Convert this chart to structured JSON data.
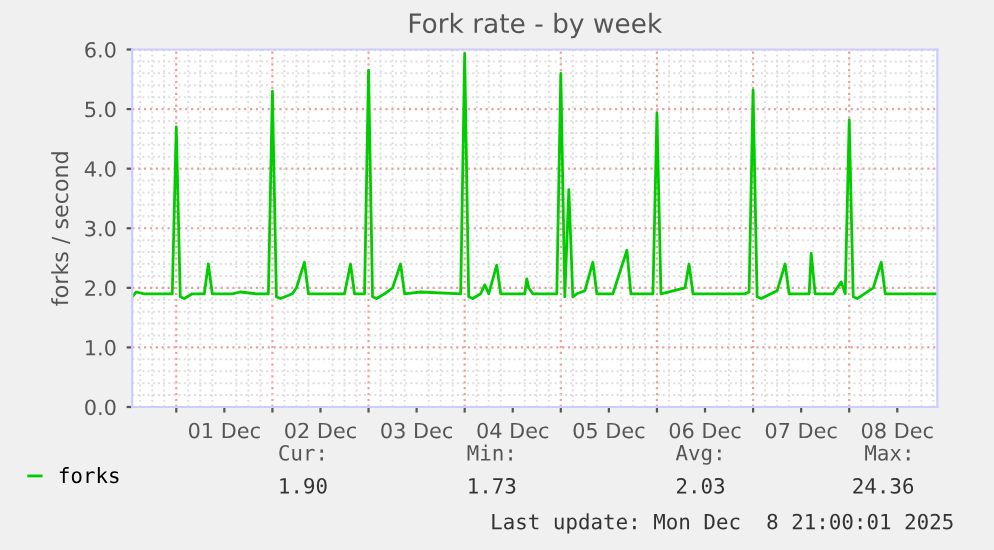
{
  "chart_data": {
    "type": "line",
    "title": "Fork rate - by week",
    "ylabel": "forks / second",
    "xlim": [
      "2025-11-30T13:00",
      "2025-12-08T22:00"
    ],
    "ylim": [
      0,
      6
    ],
    "yticks": [
      {
        "value": 0,
        "label": "0.0"
      },
      {
        "value": 1,
        "label": "1.0"
      },
      {
        "value": 2,
        "label": "2.0"
      },
      {
        "value": 3,
        "label": "3.0"
      },
      {
        "value": 4,
        "label": "4.0"
      },
      {
        "value": 5,
        "label": "5.0"
      },
      {
        "value": 6,
        "label": "6.0"
      }
    ],
    "xticks": [
      {
        "value": "2025-12-01",
        "label": null
      },
      {
        "value": "2025-12-01T12:00",
        "label": "01 Dec"
      },
      {
        "value": "2025-12-02",
        "label": null
      },
      {
        "value": "2025-12-02T12:00",
        "label": "02 Dec"
      },
      {
        "value": "2025-12-03",
        "label": null
      },
      {
        "value": "2025-12-03T12:00",
        "label": "03 Dec"
      },
      {
        "value": "2025-12-04",
        "label": null
      },
      {
        "value": "2025-12-04T12:00",
        "label": "04 Dec"
      },
      {
        "value": "2025-12-05",
        "label": null
      },
      {
        "value": "2025-12-05T12:00",
        "label": "05 Dec"
      },
      {
        "value": "2025-12-06",
        "label": null
      },
      {
        "value": "2025-12-06T12:00",
        "label": "06 Dec"
      },
      {
        "value": "2025-12-07",
        "label": null
      },
      {
        "value": "2025-12-07T12:00",
        "label": "07 Dec"
      },
      {
        "value": "2025-12-08",
        "label": null
      },
      {
        "value": "2025-12-08T12:00",
        "label": "08 Dec"
      }
    ],
    "grid": true,
    "legend": "bottom left",
    "marker": "none",
    "line_style": "solid",
    "annotations": [
      "Cur:",
      "Min:",
      "Avg:",
      "Max:",
      "1.90",
      "1.73",
      "2.03",
      "24.36",
      "Last update: Mon Dec  8 21:00:01 2025"
    ],
    "series": [
      {
        "name": "forks",
        "color": "#00cc00",
        "x": [
          "2025-11-30T13:00",
          "2025-11-30T14:00",
          "2025-11-30T16:00",
          "2025-11-30T20:00",
          "2025-11-30T23:00",
          "2025-12-01T00:00",
          "2025-12-01T01:00",
          "2025-12-01T02:00",
          "2025-12-01T04:00",
          "2025-12-01T07:00",
          "2025-12-01T08:00",
          "2025-12-01T09:00",
          "2025-12-01T14:00",
          "2025-12-01T16:00",
          "2025-12-01T20:00",
          "2025-12-01T23:00",
          "2025-12-02T00:00",
          "2025-12-02T01:00",
          "2025-12-02T02:00",
          "2025-12-02T05:00",
          "2025-12-02T06:00",
          "2025-12-02T08:00",
          "2025-12-02T09:00",
          "2025-12-02T18:00",
          "2025-12-02T19:30",
          "2025-12-02T20:30",
          "2025-12-02T23:00",
          "2025-12-03T00:00",
          "2025-12-03T01:00",
          "2025-12-03T02:00",
          "2025-12-03T04:00",
          "2025-12-03T06:00",
          "2025-12-03T08:00",
          "2025-12-03T09:00",
          "2025-12-03T13:00",
          "2025-12-03T23:00",
          "2025-12-04T00:00",
          "2025-12-04T01:00",
          "2025-12-04T02:00",
          "2025-12-04T04:00",
          "2025-12-04T05:00",
          "2025-12-04T06:00",
          "2025-12-04T08:00",
          "2025-12-04T09:00",
          "2025-12-04T15:00",
          "2025-12-04T15:30",
          "2025-12-04T16:00",
          "2025-12-04T17:00",
          "2025-12-04T23:00",
          "2025-12-05T00:00",
          "2025-12-05T01:00",
          "2025-12-05T02:00",
          "2025-12-05T03:00",
          "2025-12-05T04:00",
          "2025-12-05T06:00",
          "2025-12-05T08:00",
          "2025-12-05T09:00",
          "2025-12-05T13:00",
          "2025-12-05T16:30",
          "2025-12-05T17:30",
          "2025-12-05T23:00",
          "2025-12-06T00:00",
          "2025-12-06T01:00",
          "2025-12-06T07:00",
          "2025-12-06T08:00",
          "2025-12-06T09:00",
          "2025-12-06T22:00",
          "2025-12-06T23:00",
          "2025-12-07T00:00",
          "2025-12-07T01:00",
          "2025-12-07T02:00",
          "2025-12-07T06:00",
          "2025-12-07T08:00",
          "2025-12-07T09:00",
          "2025-12-07T14:00",
          "2025-12-07T14:30",
          "2025-12-07T15:30",
          "2025-12-07T20:00",
          "2025-12-07T22:00",
          "2025-12-07T23:00",
          "2025-12-08T00:00",
          "2025-12-08T01:00",
          "2025-12-08T02:00",
          "2025-12-08T06:00",
          "2025-12-08T08:00",
          "2025-12-08T09:00",
          "2025-12-08T14:00",
          "2025-12-08T22:00"
        ],
        "values": [
          1.85,
          1.93,
          1.9,
          1.9,
          1.9,
          4.7,
          1.85,
          1.82,
          1.9,
          1.9,
          2.4,
          1.9,
          1.9,
          1.93,
          1.9,
          1.9,
          5.3,
          1.85,
          1.82,
          1.9,
          2.0,
          2.43,
          1.9,
          1.9,
          2.4,
          1.9,
          1.9,
          5.65,
          1.85,
          1.82,
          1.9,
          2.0,
          2.4,
          1.9,
          1.93,
          1.9,
          5.93,
          1.85,
          1.82,
          1.9,
          2.05,
          1.9,
          2.38,
          1.9,
          1.9,
          2.15,
          2.0,
          1.9,
          1.9,
          5.6,
          1.85,
          3.65,
          1.85,
          1.9,
          1.95,
          2.43,
          1.9,
          1.9,
          2.63,
          1.9,
          1.9,
          4.93,
          1.9,
          2.0,
          2.4,
          1.9,
          1.9,
          1.93,
          5.32,
          1.85,
          1.82,
          1.95,
          2.4,
          1.9,
          1.9,
          2.58,
          1.9,
          1.9,
          2.1,
          1.9,
          4.82,
          1.85,
          1.82,
          2.0,
          2.43,
          1.9,
          1.9,
          1.9
        ]
      }
    ]
  }
}
